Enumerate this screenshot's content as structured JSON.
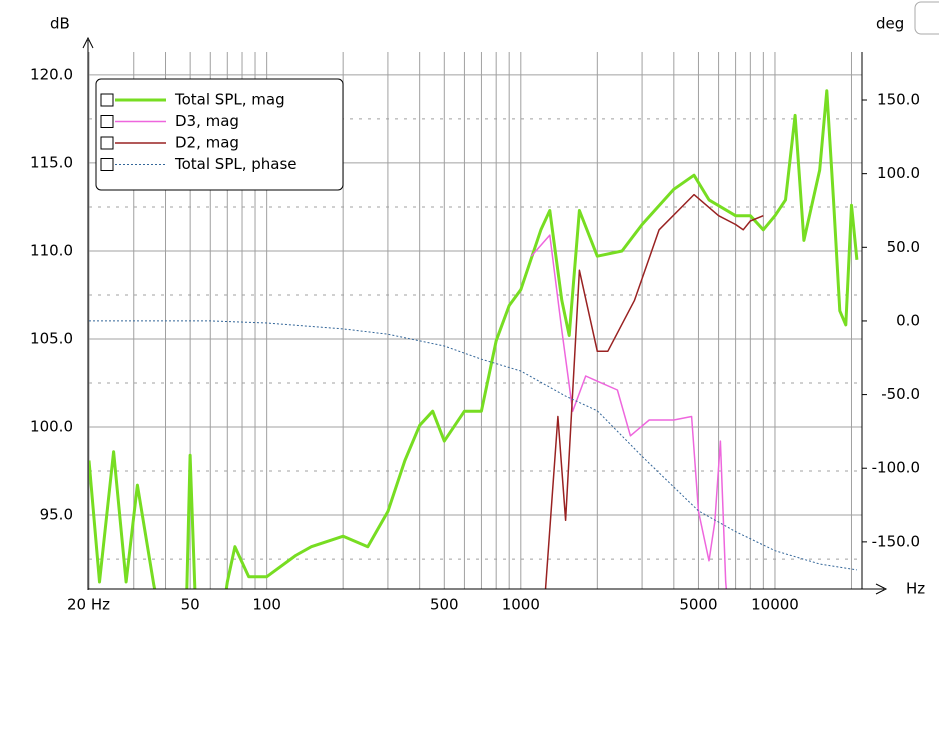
{
  "chart_data": {
    "type": "line",
    "y_label": "dB",
    "y2_label": "deg",
    "x_label": "Hz",
    "xscale": "log",
    "xlim": [
      20,
      22000
    ],
    "xticks": [
      {
        "value": 20,
        "label": "20 Hz"
      },
      50,
      100,
      500,
      1000,
      5000,
      10000
    ],
    "xminorticks": [
      30,
      40,
      60,
      70,
      80,
      90,
      200,
      300,
      400,
      600,
      700,
      800,
      900,
      2000,
      3000,
      4000,
      6000,
      7000,
      8000,
      9000,
      20000
    ],
    "ylim": [
      90.8,
      121.3
    ],
    "yticks": [
      {
        "value": 95,
        "label": "95.0"
      },
      {
        "value": 100,
        "label": "100.0"
      },
      {
        "value": 105,
        "label": "105.0"
      },
      {
        "value": 110,
        "label": "110.0"
      },
      {
        "value": 115,
        "label": "115.0"
      },
      {
        "value": 120,
        "label": "120.0"
      }
    ],
    "yminorticks": [
      92.5,
      97.5,
      102.5,
      107.5,
      112.5,
      117.5
    ],
    "y2lim": [
      -182,
      182.6
    ],
    "y2ticks": [
      {
        "value": -150,
        "label": "-150.0"
      },
      {
        "value": -100,
        "label": "-100.0"
      },
      {
        "value": -50,
        "label": "-50.0"
      },
      {
        "value": 0,
        "label": "0.0"
      },
      {
        "value": 50,
        "label": "50.0"
      },
      {
        "value": 100,
        "label": "100.0"
      },
      {
        "value": 150,
        "label": "150.0"
      }
    ],
    "grid": true,
    "legend": "top-left",
    "series": [
      {
        "name": "Total SPL, mag",
        "color": "#77dd22",
        "width": 3,
        "x": [
          20,
          22,
          25,
          28,
          31,
          36,
          40,
          48,
          50,
          53,
          65,
          70,
          75,
          85,
          100,
          130,
          150,
          200,
          250,
          300,
          350,
          400,
          450,
          500,
          600,
          700,
          800,
          900,
          1000,
          1200,
          1300,
          1450,
          1550,
          1700,
          2000,
          2500,
          3000,
          4000,
          4800,
          5500,
          7000,
          8000,
          9000,
          10000,
          11000,
          12000,
          13000,
          15000,
          16000,
          17000,
          18000,
          19000,
          20000,
          21000
        ],
        "values": [
          98.1,
          91.2,
          98.6,
          91.2,
          96.7,
          91,
          88,
          88,
          98.4,
          88,
          88,
          91.2,
          93.2,
          91.5,
          91.5,
          92.7,
          93.2,
          93.8,
          93.2,
          95.2,
          98.1,
          100.1,
          100.9,
          99.2,
          100.9,
          100.9,
          104.9,
          106.9,
          107.8,
          111.2,
          112.3,
          107.2,
          105.2,
          112.3,
          109.7,
          110,
          111.5,
          113.5,
          114.3,
          112.9,
          112,
          112,
          111.2,
          112,
          112.9,
          117.7,
          110.6,
          114.6,
          119.1,
          112.9,
          106.6,
          105.8,
          112.6,
          109.5
        ]
      },
      {
        "name": "D3, mag",
        "color": "#ee66dd",
        "width": 1.5,
        "x": [
          1100,
          1300,
          1450,
          1600,
          1800,
          2000,
          2400,
          2700,
          3200,
          4000,
          4700,
          5000,
          5500,
          5800,
          6100,
          6400,
          6600
        ],
        "values": [
          109.7,
          110.9,
          105.5,
          100.9,
          102.9,
          102.6,
          102.1,
          99.5,
          100.4,
          100.4,
          100.6,
          95.2,
          92.4,
          94.6,
          99.2,
          91.2,
          89
        ]
      },
      {
        "name": "D2, mag",
        "color": "#992222",
        "width": 1.5,
        "x": [
          1200,
          1250,
          1400,
          1500,
          1700,
          2000,
          2200,
          2800,
          3500,
          4800,
          6000,
          7000,
          7500,
          8000,
          9000
        ],
        "values": [
          88,
          90.7,
          100.6,
          94.7,
          108.9,
          104.3,
          104.3,
          107.2,
          111.2,
          113.2,
          112,
          111.5,
          111.2,
          111.7,
          112
        ]
      },
      {
        "name": "Total SPL, phase",
        "color": "#336699",
        "width": 1,
        "dash": "2 2",
        "axis": "y2",
        "x": [
          20,
          60,
          100,
          200,
          300,
          500,
          700,
          1000,
          1500,
          2000,
          3000,
          5000,
          7000,
          10000,
          15000,
          21000
        ],
        "values": [
          0,
          0,
          -1.4,
          -5.4,
          -9,
          -17,
          -26,
          -34,
          -51,
          -61,
          -92,
          -129,
          -143,
          -156,
          -165,
          -169
        ]
      }
    ]
  }
}
